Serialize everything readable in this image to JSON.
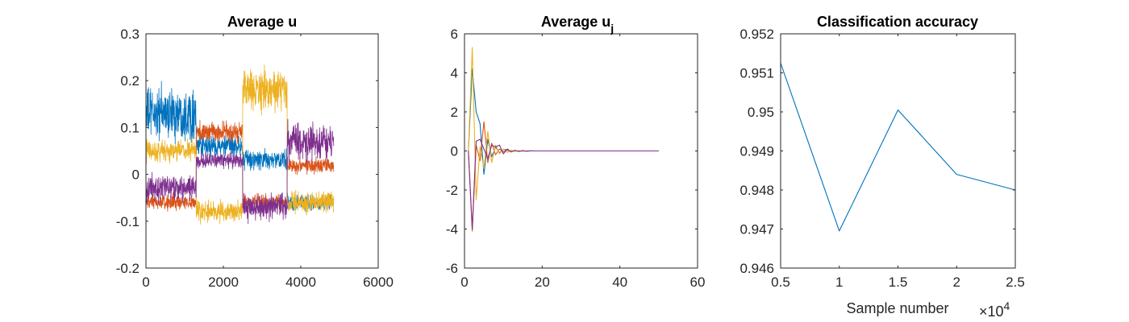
{
  "chart_data": [
    {
      "type": "line",
      "title": "Average u",
      "xlabel": "",
      "ylabel": "",
      "xlim": [
        0,
        6000
      ],
      "ylim": [
        -0.2,
        0.3
      ],
      "xticks": [
        0,
        2000,
        4000,
        6000
      ],
      "xtick_labels": [
        "0",
        "2000",
        "4000",
        "6000"
      ],
      "yticks": [
        -0.2,
        -0.1,
        0,
        0.1,
        0.2,
        0.3
      ],
      "ytick_labels": [
        "-0.2",
        "-0.1",
        "0",
        "0.1",
        "0.2",
        "0.3"
      ],
      "grid": false,
      "legend": "none",
      "x_start": 0,
      "x_end": 4850,
      "segment_boundaries": [
        0,
        1300,
        2500,
        3650,
        4850
      ],
      "series": [
        {
          "color": "#0072BD",
          "segment_levels": [
            0.13,
            0.06,
            0.03,
            -0.06
          ],
          "segment_amplitude": [
            0.05,
            0.02,
            0.02,
            0.015
          ]
        },
        {
          "color": "#D95319",
          "segment_levels": [
            -0.06,
            0.09,
            -0.06,
            0.02
          ],
          "segment_amplitude": [
            0.015,
            0.02,
            0.015,
            0.015
          ]
        },
        {
          "color": "#EDB120",
          "segment_levels": [
            0.05,
            -0.08,
            0.18,
            -0.06
          ],
          "segment_amplitude": [
            0.02,
            0.02,
            0.04,
            0.02
          ]
        },
        {
          "color": "#7E2F8E",
          "segment_levels": [
            -0.03,
            0.03,
            -0.07,
            0.07
          ],
          "segment_amplitude": [
            0.025,
            0.015,
            0.025,
            0.035
          ]
        }
      ]
    },
    {
      "type": "line",
      "title": "Average u",
      "title_subscript": "j",
      "xlabel": "",
      "ylabel": "",
      "xlim": [
        0,
        60
      ],
      "ylim": [
        -6,
        6
      ],
      "xticks": [
        0,
        20,
        40,
        60
      ],
      "xtick_labels": [
        "0",
        "20",
        "40",
        "60"
      ],
      "yticks": [
        -6,
        -4,
        -2,
        0,
        2,
        4,
        6
      ],
      "ytick_labels": [
        "-6",
        "-4",
        "-2",
        "0",
        "2",
        "4",
        "6"
      ],
      "grid": false,
      "legend": "none",
      "x_end": 50,
      "series": [
        {
          "color": "#0072BD",
          "x": [
            1,
            2,
            3,
            4,
            5,
            6,
            7,
            8,
            9,
            10,
            11,
            12,
            13,
            14,
            15,
            16,
            17,
            18,
            19,
            20,
            30,
            40,
            50
          ],
          "y": [
            0,
            4.2,
            2.0,
            1.4,
            -1.2,
            0.6,
            -0.3,
            0.2,
            -0.1,
            0.08,
            0.05,
            -0.05,
            0.03,
            -0.03,
            0.02,
            -0.02,
            0.01,
            0,
            0,
            0,
            0,
            0,
            0
          ]
        },
        {
          "color": "#D95319",
          "x": [
            1,
            2,
            3,
            4,
            5,
            6,
            7,
            8,
            9,
            10,
            11,
            12,
            13,
            14,
            15,
            16,
            17,
            18,
            19,
            20,
            30,
            40,
            50
          ],
          "y": [
            0,
            -4.1,
            0.3,
            -0.5,
            1.5,
            -0.6,
            0.4,
            -0.2,
            0.1,
            -0.05,
            0.04,
            -0.03,
            0.02,
            -0.02,
            0.01,
            -0.01,
            0,
            0,
            0,
            0,
            0,
            0,
            0
          ]
        },
        {
          "color": "#EDB120",
          "x": [
            1,
            2,
            3,
            4,
            5,
            6,
            7,
            8,
            9,
            10,
            11,
            12,
            13,
            14,
            15,
            16,
            17,
            18,
            19,
            20,
            30,
            40,
            50
          ],
          "y": [
            0,
            5.3,
            -2.5,
            0.2,
            -0.9,
            1.0,
            -0.6,
            0.3,
            -0.15,
            0.1,
            -0.08,
            0.05,
            -0.03,
            0.02,
            -0.02,
            0.01,
            0,
            0,
            0,
            0,
            0,
            0,
            0
          ]
        },
        {
          "color": "#7E2F8E",
          "x": [
            1,
            2,
            3,
            4,
            5,
            6,
            7,
            8,
            9,
            10,
            11,
            12,
            13,
            14,
            15,
            16,
            17,
            18,
            19,
            20,
            30,
            40,
            50
          ],
          "y": [
            0,
            -4.0,
            0.5,
            0.6,
            0.1,
            -0.4,
            0.3,
            0.2,
            0.3,
            -0.15,
            0.1,
            -0.05,
            0.03,
            -0.02,
            0.01,
            -0.01,
            0,
            0,
            0,
            0,
            0,
            0,
            0
          ]
        }
      ]
    },
    {
      "type": "line",
      "title": "Classification accuracy",
      "xlabel": "Sample number",
      "ylabel": "",
      "x_exponent_label": "×10",
      "x_exponent_power": "4",
      "xlim": [
        0.5,
        2.5
      ],
      "ylim": [
        0.946,
        0.952
      ],
      "xticks": [
        0.5,
        1,
        1.5,
        2,
        2.5
      ],
      "xtick_labels": [
        "0.5",
        "1",
        "1.5",
        "2",
        "2.5"
      ],
      "yticks": [
        0.946,
        0.947,
        0.948,
        0.949,
        0.95,
        0.951,
        0.952
      ],
      "ytick_labels": [
        "0.946",
        "0.947",
        "0.948",
        "0.949",
        "0.95",
        "0.951",
        "0.952"
      ],
      "grid": false,
      "legend": "none",
      "series": [
        {
          "color": "#0072BD",
          "x": [
            0.5,
            1,
            1.5,
            2,
            2.5
          ],
          "y": [
            0.95125,
            0.94695,
            0.95005,
            0.9484,
            0.948
          ]
        }
      ]
    }
  ]
}
